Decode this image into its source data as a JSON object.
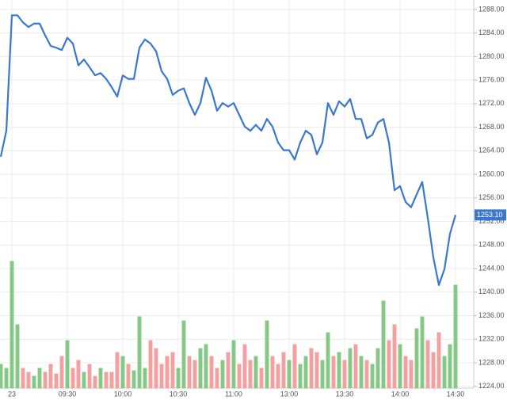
{
  "chart_data": {
    "type": "line",
    "categories": [
      null,
      null,
      "23",
      null,
      null,
      null,
      null,
      null,
      null,
      null,
      null,
      null,
      "09:30",
      null,
      null,
      null,
      null,
      null,
      null,
      null,
      null,
      null,
      "10:00",
      null,
      null,
      null,
      null,
      null,
      null,
      null,
      null,
      null,
      "10:30",
      null,
      null,
      null,
      null,
      null,
      null,
      null,
      null,
      null,
      "11:00",
      null,
      null,
      null,
      null,
      null,
      null,
      null,
      null,
      null,
      "13:00",
      null,
      null,
      null,
      null,
      null,
      null,
      null,
      null,
      null,
      "13:30",
      null,
      null,
      null,
      null,
      null,
      null,
      null,
      null,
      null,
      "14:00",
      null,
      null,
      null,
      null,
      null,
      null,
      null,
      null,
      null,
      "14:30"
    ],
    "price": {
      "color": "#3a78d0",
      "values": [
        1263.0,
        1267.4,
        1287.0,
        1287.0,
        1285.8,
        1285.0,
        1285.6,
        1285.6,
        1283.6,
        1281.8,
        1281.5,
        1281.1,
        1283.2,
        1282.2,
        1278.5,
        1279.5,
        1278.2,
        1276.8,
        1277.2,
        1276.2,
        1274.8,
        1273.2,
        1276.8,
        1276.2,
        1276.2,
        1281.5,
        1282.9,
        1282.2,
        1280.9,
        1277.5,
        1276.2,
        1273.5,
        1274.2,
        1274.6,
        1272.1,
        1270.1,
        1272.1,
        1276.4,
        1274.2,
        1270.8,
        1272.1,
        1271.5,
        1272.1,
        1270.1,
        1268.1,
        1267.4,
        1268.4,
        1267.4,
        1269.4,
        1268.1,
        1265.4,
        1264.1,
        1264.1,
        1262.5,
        1265.4,
        1267.4,
        1266.7,
        1263.4,
        1265.4,
        1272.1,
        1270.1,
        1272.4,
        1271.5,
        1272.8,
        1269.4,
        1269.4,
        1266.1,
        1266.7,
        1268.8,
        1269.4,
        1265.4,
        1257.3,
        1258.0,
        1255.3,
        1254.4,
        1256.6,
        1258.7,
        1252.6,
        1245.9,
        1241.2,
        1243.9,
        1249.9,
        1253.1
      ]
    },
    "volume": {
      "up_color": "#86c986",
      "down_color": "#f4a0a0",
      "ylim": [
        0,
        175
      ],
      "values": [
        30,
        25,
        160,
        80,
        25,
        20,
        15,
        25,
        20,
        30,
        18,
        40,
        60,
        25,
        35,
        20,
        30,
        15,
        25,
        20,
        20,
        45,
        40,
        30,
        22,
        90,
        25,
        60,
        50,
        30,
        40,
        45,
        25,
        85,
        40,
        35,
        50,
        55,
        40,
        25,
        35,
        45,
        60,
        30,
        55,
        35,
        40,
        25,
        85,
        40,
        30,
        45,
        35,
        55,
        30,
        40,
        50,
        45,
        35,
        70,
        40,
        45,
        35,
        50,
        55,
        40,
        35,
        30,
        50,
        110,
        60,
        80,
        55,
        40,
        35,
        75,
        90,
        60,
        45,
        70,
        40,
        55,
        130
      ]
    },
    "current_price": {
      "value": 1253.1,
      "label": "1253.10",
      "color": "#3a78d0"
    },
    "ylim": [
      1223.7,
      1289.6
    ],
    "yticks": [
      {
        "value": 1224,
        "label": "1224.00"
      },
      {
        "value": 1228,
        "label": "1228.00"
      },
      {
        "value": 1232,
        "label": "1232.00"
      },
      {
        "value": 1236,
        "label": "1236.00"
      },
      {
        "value": 1240,
        "label": "1240.00"
      },
      {
        "value": 1244,
        "label": "1244.00"
      },
      {
        "value": 1248,
        "label": "1248.00"
      },
      {
        "value": 1252,
        "label": "1252.00"
      },
      {
        "value": 1256,
        "label": "1256.00"
      },
      {
        "value": 1260,
        "label": "1260.00"
      },
      {
        "value": 1264,
        "label": "1264.00"
      },
      {
        "value": 1268,
        "label": "1268.00"
      },
      {
        "value": 1272,
        "label": "1272.00"
      },
      {
        "value": 1276,
        "label": "1276.00"
      },
      {
        "value": 1280,
        "label": "1280.00"
      },
      {
        "value": 1284,
        "label": "1284.00"
      },
      {
        "value": 1288,
        "label": "1288.00"
      }
    ],
    "grid": true
  }
}
